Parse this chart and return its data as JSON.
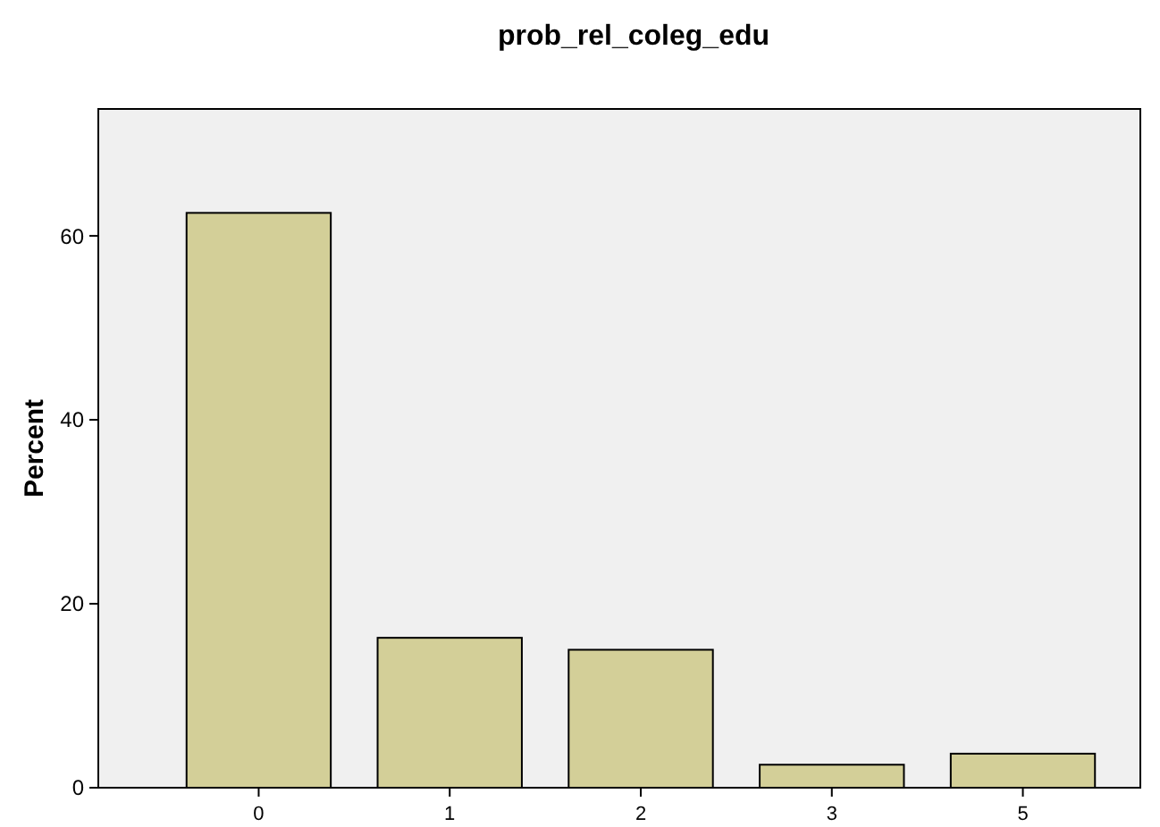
{
  "chart_data": {
    "type": "bar",
    "title": "prob_rel_coleg_edu",
    "ylabel": "Percent",
    "categories": [
      "0",
      "1",
      "2",
      "3",
      "5"
    ],
    "values": [
      62.5,
      16.3,
      15.0,
      2.5,
      3.7
    ],
    "color": "#d3cf98",
    "ylim": [
      0,
      73.8
    ],
    "yticks": [
      0,
      20,
      40,
      60
    ],
    "grid": false
  }
}
